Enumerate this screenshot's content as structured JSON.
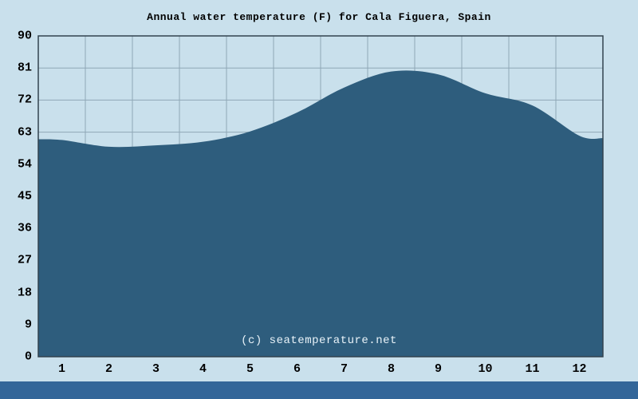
{
  "chart_data": {
    "type": "area",
    "title": "Annual water temperature (F) for Cala Figuera, Spain",
    "xlabel": "",
    "ylabel": "",
    "x": [
      1,
      2,
      3,
      4,
      5,
      6,
      7,
      8,
      9,
      10,
      11,
      12
    ],
    "values": [
      60.8,
      58.9,
      59.3,
      60.3,
      63.2,
      68.5,
      75.5,
      80.0,
      79.2,
      73.9,
      70.5,
      62.0
    ],
    "edge_start": 61.0,
    "edge_end": 61.3,
    "ylim": [
      0,
      90
    ],
    "yticks": [
      90,
      81,
      72,
      63,
      54,
      45,
      36,
      27,
      18,
      9,
      0
    ],
    "xticks": [
      "1",
      "2",
      "3",
      "4",
      "5",
      "6",
      "7",
      "8",
      "9",
      "10",
      "11",
      "12"
    ],
    "grid": true,
    "legend": "none",
    "watermark": "(c) seatemperature.net",
    "colors": {
      "background": "#c9e0ec",
      "area": "#2e5d7d",
      "grid": "#8fa7b6",
      "border": "#32434e",
      "footer": "#336699",
      "text": "#000000",
      "watermark_text": "#e9f3f9"
    }
  }
}
